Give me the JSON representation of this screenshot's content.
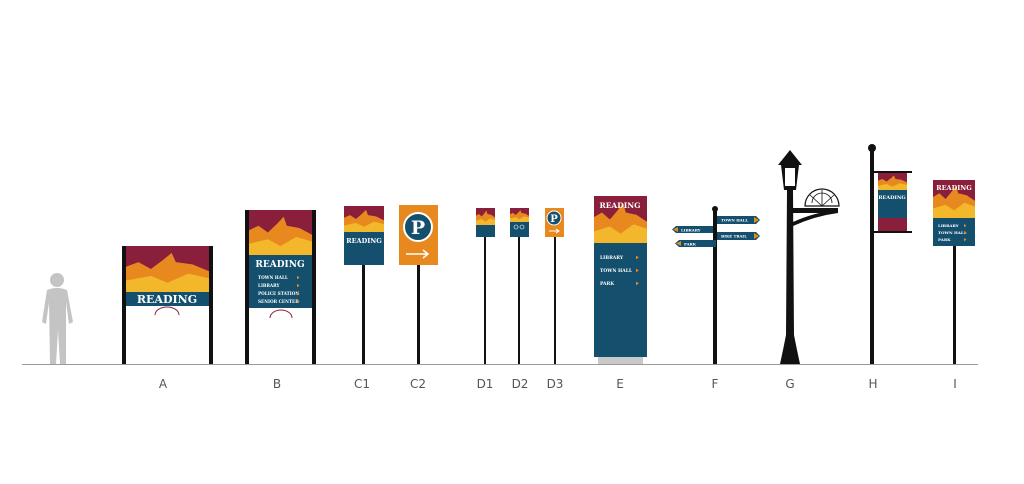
{
  "labels": [
    "A",
    "B",
    "C1",
    "C2",
    "D1",
    "D2",
    "D3",
    "E",
    "F",
    "G",
    "H",
    "I"
  ],
  "signs": {
    "a": {
      "title": "READING"
    },
    "b": {
      "title": "READING",
      "items": [
        "TOWN HALL",
        "LIBRARY",
        "POLICE STATION",
        "SENIOR CENTER"
      ]
    },
    "c1": {
      "title": "READING"
    },
    "c2": {
      "symbol": "P"
    },
    "d3": {
      "symbol": "P"
    },
    "e": {
      "title": "READING",
      "items": [
        "LIBRARY",
        "TOWN HALL",
        "PARK"
      ]
    },
    "f": {
      "blades": [
        "TOWN HALL",
        "LIBRARY",
        "BIKE TRAIL",
        "PARK"
      ]
    },
    "h": {
      "title": "READING"
    },
    "i": {
      "title": "READING",
      "items": [
        "LIBRARY",
        "TOWN HALL",
        "PARK"
      ]
    }
  }
}
